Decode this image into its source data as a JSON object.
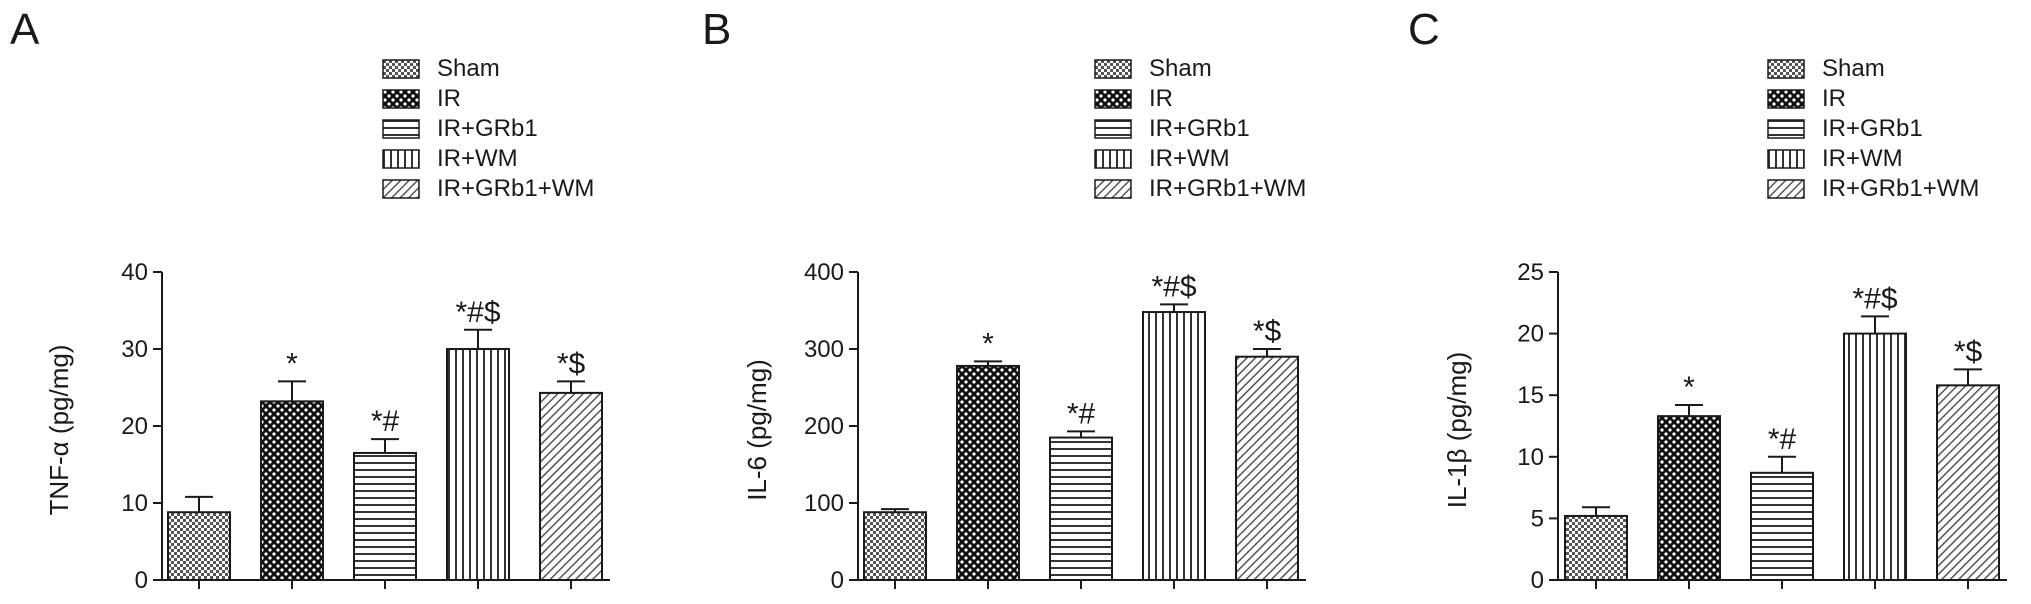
{
  "legend_labels": [
    "Sham",
    "IR",
    "IR+GRb1",
    "IR+WM",
    "IR+GRb1+WM"
  ],
  "bar_color": "#1a1a1a",
  "chart_data": [
    {
      "type": "bar",
      "panel_label": "A",
      "title": "",
      "xlabel": "",
      "ylabel": "TNF-α (pg/mg)",
      "categories": [
        "Sham",
        "IR",
        "IR+GRb1",
        "IR+WM",
        "IR+GRb1+WM"
      ],
      "values": [
        8.8,
        23.2,
        16.5,
        30.0,
        24.3
      ],
      "errors": [
        2.0,
        2.6,
        1.8,
        2.5,
        1.5
      ],
      "annotations": [
        "",
        "*",
        "*#",
        "*#$",
        "*$"
      ],
      "ylim": [
        0,
        40
      ],
      "yticks": [
        0,
        10,
        20,
        30,
        40
      ],
      "legend": "top-right",
      "grid": false
    },
    {
      "type": "bar",
      "panel_label": "B",
      "title": "",
      "xlabel": "",
      "ylabel": "IL-6 (pg/mg)",
      "categories": [
        "Sham",
        "IR",
        "IR+GRb1",
        "IR+WM",
        "IR+GRb1+WM"
      ],
      "values": [
        88,
        278,
        185,
        348,
        290
      ],
      "errors": [
        4,
        6,
        8,
        10,
        10
      ],
      "annotations": [
        "",
        "*",
        "*#",
        "*#$",
        "*$"
      ],
      "ylim": [
        0,
        400
      ],
      "yticks": [
        0,
        100,
        200,
        300,
        400
      ],
      "legend": "top-right",
      "grid": false
    },
    {
      "type": "bar",
      "panel_label": "C",
      "title": "",
      "xlabel": "",
      "ylabel": "IL-1β (pg/mg)",
      "categories": [
        "Sham",
        "IR",
        "IR+GRb1",
        "IR+WM",
        "IR+GRb1+WM"
      ],
      "values": [
        5.2,
        13.3,
        8.7,
        20.0,
        15.8
      ],
      "errors": [
        0.7,
        0.9,
        1.3,
        1.4,
        1.3
      ],
      "annotations": [
        "",
        "*",
        "*#",
        "*#$",
        "*$"
      ],
      "ylim": [
        0,
        25
      ],
      "yticks": [
        0,
        5,
        10,
        15,
        20,
        25
      ],
      "legend": "top-right",
      "grid": false
    }
  ]
}
